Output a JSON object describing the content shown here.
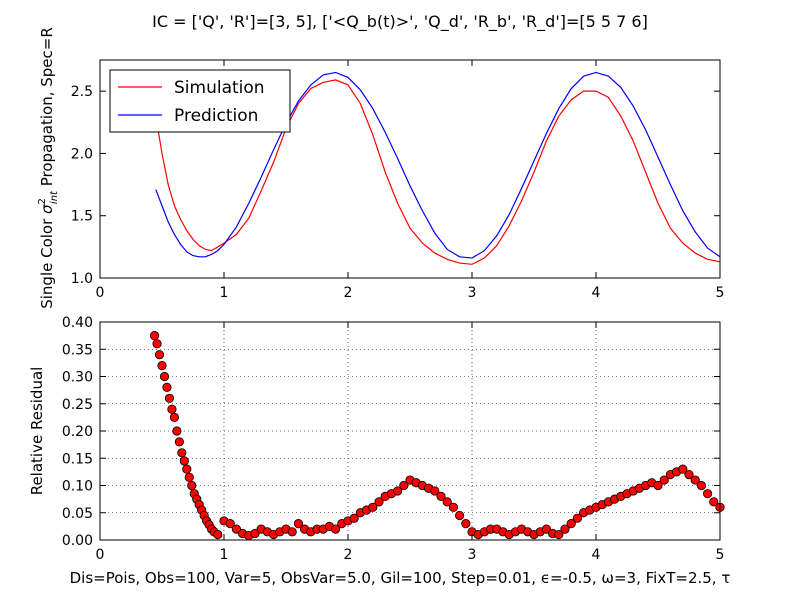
{
  "figure": {
    "title": "IC = ['Q', 'R']=[3, 5], ['<Q_b(t)>', 'Q_d', 'R_b', 'R_d']=[5 5 7 6]",
    "footer": "Dis=Pois, Obs=100, Var=5, ObsVar=5.0, Gil=100, Step=0.01, ϵ=-0.5, ω=3, FixT=2.5, τ"
  },
  "chart_data": [
    {
      "type": "line",
      "title": "",
      "xlabel": "",
      "ylabel": "Single Color σ²int  Propagation, Spec=R",
      "xlim": [
        0,
        5
      ],
      "ylim": [
        1.0,
        2.75
      ],
      "xticks": [
        "0",
        "1",
        "2",
        "3",
        "4",
        "5"
      ],
      "yticks": [
        "1.0",
        "1.5",
        "2.0",
        "2.5"
      ],
      "grid": false,
      "legend": "top-left",
      "series": [
        {
          "name": "Simulation",
          "color": "#ff0000",
          "x": [
            0.45,
            0.5,
            0.55,
            0.6,
            0.65,
            0.7,
            0.75,
            0.8,
            0.85,
            0.9,
            0.95,
            1.0,
            1.1,
            1.2,
            1.3,
            1.4,
            1.5,
            1.6,
            1.7,
            1.8,
            1.9,
            2.0,
            2.1,
            2.2,
            2.3,
            2.4,
            2.5,
            2.6,
            2.7,
            2.8,
            2.9,
            3.0,
            3.1,
            3.2,
            3.3,
            3.4,
            3.5,
            3.6,
            3.7,
            3.8,
            3.9,
            4.0,
            4.1,
            4.2,
            4.3,
            4.4,
            4.5,
            4.6,
            4.7,
            4.8,
            4.9,
            5.0
          ],
          "y": [
            2.3,
            2.0,
            1.75,
            1.58,
            1.47,
            1.38,
            1.31,
            1.26,
            1.23,
            1.22,
            1.25,
            1.28,
            1.35,
            1.48,
            1.7,
            1.93,
            2.2,
            2.4,
            2.52,
            2.57,
            2.59,
            2.55,
            2.4,
            2.15,
            1.85,
            1.6,
            1.4,
            1.28,
            1.2,
            1.15,
            1.12,
            1.11,
            1.16,
            1.26,
            1.42,
            1.62,
            1.85,
            2.1,
            2.3,
            2.43,
            2.5,
            2.5,
            2.45,
            2.3,
            2.1,
            1.85,
            1.6,
            1.4,
            1.28,
            1.2,
            1.15,
            1.13
          ]
        },
        {
          "name": "Prediction",
          "color": "#0000ff",
          "x": [
            0.45,
            0.5,
            0.55,
            0.6,
            0.65,
            0.7,
            0.75,
            0.8,
            0.85,
            0.9,
            0.95,
            1.0,
            1.1,
            1.2,
            1.3,
            1.4,
            1.5,
            1.6,
            1.7,
            1.8,
            1.9,
            2.0,
            2.1,
            2.2,
            2.3,
            2.4,
            2.5,
            2.6,
            2.7,
            2.8,
            2.9,
            3.0,
            3.1,
            3.2,
            3.3,
            3.4,
            3.5,
            3.6,
            3.7,
            3.8,
            3.9,
            4.0,
            4.1,
            4.2,
            4.3,
            4.4,
            4.5,
            4.6,
            4.7,
            4.8,
            4.9,
            5.0
          ],
          "y": [
            1.71,
            1.58,
            1.45,
            1.35,
            1.27,
            1.21,
            1.18,
            1.17,
            1.17,
            1.19,
            1.22,
            1.27,
            1.41,
            1.6,
            1.81,
            2.03,
            2.24,
            2.42,
            2.55,
            2.63,
            2.65,
            2.61,
            2.51,
            2.36,
            2.17,
            1.96,
            1.74,
            1.54,
            1.36,
            1.23,
            1.17,
            1.16,
            1.22,
            1.34,
            1.51,
            1.72,
            1.94,
            2.16,
            2.36,
            2.52,
            2.62,
            2.65,
            2.62,
            2.53,
            2.38,
            2.19,
            1.97,
            1.75,
            1.54,
            1.37,
            1.24,
            1.17
          ]
        }
      ]
    },
    {
      "type": "scatter",
      "title": "",
      "xlabel": "",
      "ylabel": "Relative Residual",
      "xlim": [
        0,
        5
      ],
      "ylim": [
        0.0,
        0.4
      ],
      "xticks": [
        "0",
        "1",
        "2",
        "3",
        "4",
        "5"
      ],
      "yticks": [
        "0.00",
        "0.05",
        "0.10",
        "0.15",
        "0.20",
        "0.25",
        "0.30",
        "0.35",
        "0.40"
      ],
      "grid": true,
      "marker_color": "#ff0000",
      "x": [
        0.44,
        0.46,
        0.48,
        0.5,
        0.52,
        0.54,
        0.56,
        0.58,
        0.6,
        0.62,
        0.64,
        0.66,
        0.68,
        0.7,
        0.72,
        0.74,
        0.76,
        0.78,
        0.8,
        0.82,
        0.84,
        0.86,
        0.88,
        0.9,
        0.92,
        0.95,
        1.0,
        1.05,
        1.1,
        1.15,
        1.2,
        1.25,
        1.3,
        1.35,
        1.4,
        1.45,
        1.5,
        1.55,
        1.6,
        1.65,
        1.7,
        1.75,
        1.8,
        1.85,
        1.9,
        1.95,
        2.0,
        2.05,
        2.1,
        2.15,
        2.2,
        2.25,
        2.3,
        2.35,
        2.4,
        2.45,
        2.5,
        2.55,
        2.6,
        2.65,
        2.7,
        2.75,
        2.8,
        2.85,
        2.9,
        2.95,
        3.0,
        3.05,
        3.1,
        3.15,
        3.2,
        3.25,
        3.3,
        3.35,
        3.4,
        3.45,
        3.5,
        3.55,
        3.6,
        3.65,
        3.7,
        3.75,
        3.8,
        3.85,
        3.9,
        3.95,
        4.0,
        4.05,
        4.1,
        4.15,
        4.2,
        4.25,
        4.3,
        4.35,
        4.4,
        4.45,
        4.5,
        4.55,
        4.6,
        4.65,
        4.7,
        4.75,
        4.8,
        4.85,
        4.9,
        4.95,
        5.0
      ],
      "y": [
        0.375,
        0.36,
        0.34,
        0.32,
        0.3,
        0.28,
        0.26,
        0.24,
        0.225,
        0.2,
        0.18,
        0.16,
        0.145,
        0.13,
        0.115,
        0.1,
        0.085,
        0.075,
        0.065,
        0.055,
        0.045,
        0.035,
        0.028,
        0.02,
        0.015,
        0.01,
        0.035,
        0.03,
        0.02,
        0.012,
        0.008,
        0.012,
        0.02,
        0.015,
        0.01,
        0.015,
        0.02,
        0.015,
        0.03,
        0.02,
        0.015,
        0.02,
        0.02,
        0.025,
        0.02,
        0.03,
        0.035,
        0.04,
        0.05,
        0.055,
        0.06,
        0.07,
        0.08,
        0.085,
        0.09,
        0.1,
        0.11,
        0.105,
        0.1,
        0.095,
        0.09,
        0.08,
        0.07,
        0.06,
        0.045,
        0.03,
        0.015,
        0.01,
        0.015,
        0.02,
        0.02,
        0.015,
        0.01,
        0.015,
        0.02,
        0.015,
        0.01,
        0.015,
        0.02,
        0.012,
        0.01,
        0.02,
        0.03,
        0.04,
        0.05,
        0.055,
        0.06,
        0.065,
        0.07,
        0.075,
        0.08,
        0.085,
        0.09,
        0.095,
        0.1,
        0.105,
        0.1,
        0.11,
        0.12,
        0.125,
        0.13,
        0.12,
        0.11,
        0.1,
        0.085,
        0.07,
        0.06
      ]
    }
  ]
}
